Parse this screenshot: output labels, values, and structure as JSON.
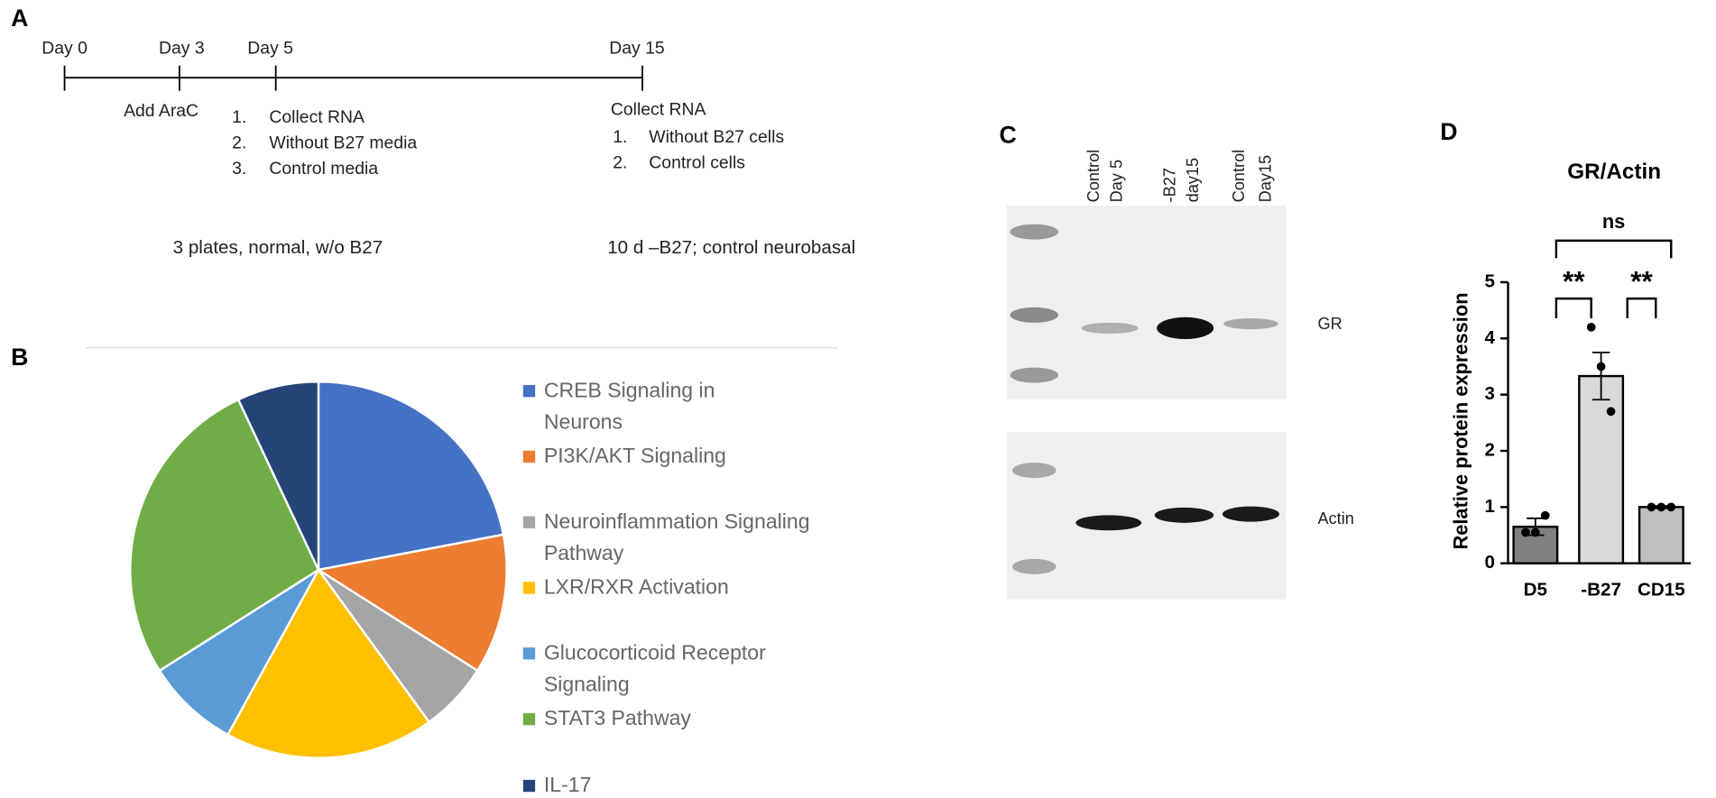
{
  "panel_labels": [
    "A",
    "B",
    "C",
    "D"
  ],
  "timeline": {
    "days": [
      "Day 0",
      "Day 3",
      "Day 5",
      "Day 15"
    ],
    "day3_step": "Add AraC",
    "day5_items": [
      {
        "marker": "1.",
        "text": "Collect RNA"
      },
      {
        "marker": "2.",
        "text": "Without B27 media"
      },
      {
        "marker": "3.",
        "text": "Control media"
      }
    ],
    "day15_heading": "Collect RNA",
    "day15_items": [
      {
        "marker": "1.",
        "text": "Without B27 cells"
      },
      {
        "marker": "2.",
        "text": "Control cells"
      }
    ],
    "notes": [
      "3 plates, normal, w/o B27",
      "10 d –B27; control neurobasal"
    ]
  },
  "chart_data": [
    {
      "type": "pie",
      "categories": [
        "CREB Signaling in Neurons",
        "PI3K/AKT Signaling",
        "Neuroinflammation Signaling Pathway",
        "LXR/RXR Activation",
        "Glucocorticoid Receptor Signaling",
        "STAT3 Pathway",
        "IL-17"
      ],
      "values": [
        22,
        12,
        6,
        18,
        8,
        27,
        7
      ],
      "colors": [
        "#4472c4",
        "#ed7d31",
        "#a5a5a5",
        "#ffc000",
        "#5b9bd5",
        "#70ad47",
        "#264478"
      ]
    },
    {
      "type": "bar",
      "title": "GR/Actin",
      "y_label": "Relative protein expression",
      "categories": [
        "D5",
        "-B27",
        "CD15"
      ],
      "values": [
        0.65,
        3.33,
        1.0
      ],
      "errors": [
        0.15,
        0.42,
        0.02
      ],
      "points": [
        [
          0.55,
          0.55,
          0.85
        ],
        [
          4.2,
          3.5,
          2.7
        ],
        [
          1.0,
          1.0,
          1.0
        ]
      ],
      "colors": [
        "#808080",
        "#d9d9d9",
        "#bfbfbf"
      ],
      "ylim": [
        0,
        5
      ],
      "yticks": [
        0,
        1,
        2,
        3,
        4,
        5
      ],
      "significance": [
        {
          "label": "ns",
          "pair": [
            "D5",
            "CD15"
          ]
        },
        {
          "label": "**",
          "pair": [
            "D5",
            "-B27"
          ]
        },
        {
          "label": "**",
          "pair": [
            "-B27",
            "CD15"
          ]
        }
      ]
    }
  ],
  "blot": {
    "lanes": [
      [
        "Control",
        "Day 5"
      ],
      [
        "-B27",
        "day15"
      ],
      [
        "Control",
        "Day15"
      ]
    ],
    "bands": [
      "GR",
      "Actin"
    ]
  }
}
